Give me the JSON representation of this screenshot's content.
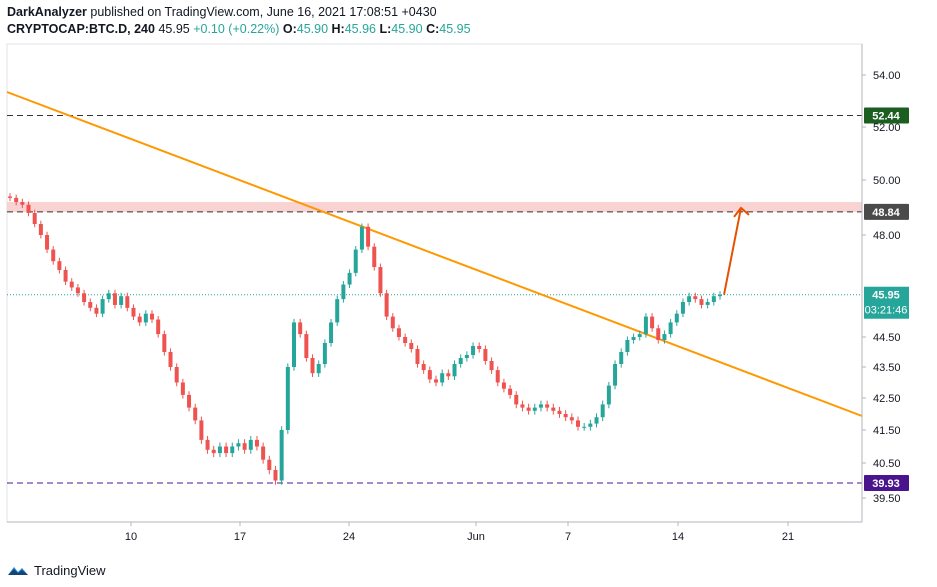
{
  "header": {
    "author": "DarkAnalyzer",
    "published": "published on TradingView.com, June 16, 2021 17:08:51 +0430",
    "symbol": "CRYPTOCAP:BTC.D, 240",
    "last": "45.95",
    "change": "+0.10 (+0.22%)",
    "o_label": "O:",
    "o_value": "45.90",
    "h_label": "H:",
    "h_value": "45.96",
    "l_label": "L:",
    "l_value": "45.90",
    "c_label": "C:",
    "c_value": "45.95"
  },
  "footer": {
    "brand": "TradingView"
  },
  "colors": {
    "up": "#26a69a",
    "down": "#ef5350",
    "trendline": "#ff9800",
    "arrow": "#e65100",
    "zone": "#f8c7c7",
    "level_green": "#1b5e20",
    "level_gray": "#4a4a4a",
    "level_purple": "#4a148c",
    "price_teal": "#26a69a"
  },
  "chart_data": {
    "type": "candlestick",
    "y_ticks": [
      "54.00",
      "52.00",
      "50.00",
      "48.00",
      "44.50",
      "43.50",
      "42.50",
      "41.50",
      "40.50",
      "39.50"
    ],
    "x_ticks": [
      "10",
      "17",
      "24",
      "Jun",
      "7",
      "14",
      "21"
    ],
    "levels": [
      {
        "value": 52.44,
        "label": "52.44",
        "style": "dashed"
      },
      {
        "value": 48.84,
        "label": "48.84",
        "style": "dashed"
      },
      {
        "value": 39.93,
        "label": "39.93",
        "style": "dashed"
      }
    ],
    "resistance_zone": [
      48.84,
      49.2
    ],
    "current_price": {
      "value": 45.95,
      "label": "45.95",
      "countdown": "03:21:46"
    },
    "trendline": "descending",
    "projection_target": 48.84,
    "series_close": [
      49.35,
      49.2,
      49.1,
      48.8,
      48.4,
      48.0,
      47.5,
      47.1,
      46.8,
      46.4,
      46.2,
      46.0,
      45.7,
      45.5,
      45.3,
      45.8,
      46.0,
      45.6,
      45.9,
      45.5,
      45.2,
      45.0,
      45.3,
      45.1,
      44.6,
      44.0,
      43.5,
      43.0,
      42.6,
      42.2,
      41.8,
      41.2,
      40.9,
      40.8,
      41.0,
      40.8,
      41.0,
      41.1,
      40.9,
      41.2,
      41.0,
      40.6,
      40.3,
      40.0,
      41.5,
      43.5,
      45.0,
      44.6,
      43.8,
      43.3,
      43.6,
      44.3,
      45.0,
      45.8,
      46.3,
      46.7,
      47.5,
      48.3,
      47.6,
      46.9,
      46.0,
      45.2,
      44.8,
      44.5,
      44.3,
      44.1,
      43.6,
      43.4,
      43.1,
      43.0,
      43.3,
      43.2,
      43.6,
      43.8,
      43.9,
      44.2,
      44.1,
      43.7,
      43.4,
      43.0,
      42.8,
      42.6,
      42.3,
      42.2,
      42.1,
      42.2,
      42.3,
      42.2,
      42.1,
      42.0,
      41.9,
      41.8,
      41.6,
      41.6,
      41.7,
      41.9,
      42.3,
      42.9,
      43.6,
      44.0,
      44.4,
      44.5,
      44.6,
      45.2,
      44.8,
      44.4,
      44.6,
      45.0,
      45.3,
      45.7,
      45.9,
      45.8,
      45.6,
      45.7,
      45.9,
      45.95
    ]
  }
}
